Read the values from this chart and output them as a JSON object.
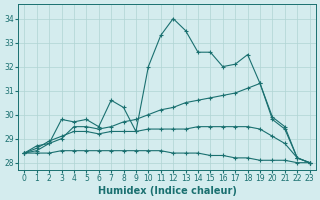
{
  "background_color": "#d4ecee",
  "grid_color": "#b0d4d4",
  "line_color": "#1a7070",
  "xlabel": "Humidex (Indice chaleur)",
  "xlim": [
    -0.5,
    23.5
  ],
  "ylim": [
    27.7,
    34.6
  ],
  "yticks": [
    28,
    29,
    30,
    31,
    32,
    33,
    34
  ],
  "xticks": [
    0,
    1,
    2,
    3,
    4,
    5,
    6,
    7,
    8,
    9,
    10,
    11,
    12,
    13,
    14,
    15,
    16,
    17,
    18,
    19,
    20,
    21,
    22,
    23
  ],
  "series": [
    {
      "x": [
        0,
        1,
        2,
        3,
        4,
        5,
        6,
        7,
        8,
        9,
        10,
        11,
        12,
        13,
        14,
        15,
        16,
        17,
        18,
        19,
        20,
        21,
        22,
        23
      ],
      "y": [
        28.4,
        28.7,
        28.8,
        29.8,
        29.7,
        29.8,
        29.5,
        30.6,
        30.3,
        29.3,
        32.0,
        33.3,
        34.0,
        33.5,
        32.6,
        32.6,
        32.0,
        32.1,
        32.5,
        31.3,
        29.8,
        29.4,
        28.2,
        28.0
      ]
    },
    {
      "x": [
        0,
        1,
        2,
        3,
        4,
        5,
        6,
        7,
        8,
        9,
        10,
        11,
        12,
        13,
        14,
        15,
        16,
        17,
        18,
        19,
        20,
        21,
        22,
        23
      ],
      "y": [
        28.4,
        28.5,
        28.8,
        29.0,
        29.5,
        29.5,
        29.4,
        29.5,
        29.7,
        29.8,
        30.0,
        30.2,
        30.3,
        30.5,
        30.6,
        30.7,
        30.8,
        30.9,
        31.1,
        31.3,
        29.9,
        29.5,
        28.2,
        28.0
      ]
    },
    {
      "x": [
        0,
        1,
        2,
        3,
        4,
        5,
        6,
        7,
        8,
        9,
        10,
        11,
        12,
        13,
        14,
        15,
        16,
        17,
        18,
        19,
        20,
        21,
        22,
        23
      ],
      "y": [
        28.4,
        28.6,
        28.9,
        29.1,
        29.3,
        29.3,
        29.2,
        29.3,
        29.3,
        29.3,
        29.4,
        29.4,
        29.4,
        29.4,
        29.5,
        29.5,
        29.5,
        29.5,
        29.5,
        29.4,
        29.1,
        28.8,
        28.2,
        28.0
      ]
    },
    {
      "x": [
        0,
        1,
        2,
        3,
        4,
        5,
        6,
        7,
        8,
        9,
        10,
        11,
        12,
        13,
        14,
        15,
        16,
        17,
        18,
        19,
        20,
        21,
        22,
        23
      ],
      "y": [
        28.4,
        28.4,
        28.4,
        28.5,
        28.5,
        28.5,
        28.5,
        28.5,
        28.5,
        28.5,
        28.5,
        28.5,
        28.4,
        28.4,
        28.4,
        28.3,
        28.3,
        28.2,
        28.2,
        28.1,
        28.1,
        28.1,
        28.0,
        28.0
      ]
    }
  ]
}
